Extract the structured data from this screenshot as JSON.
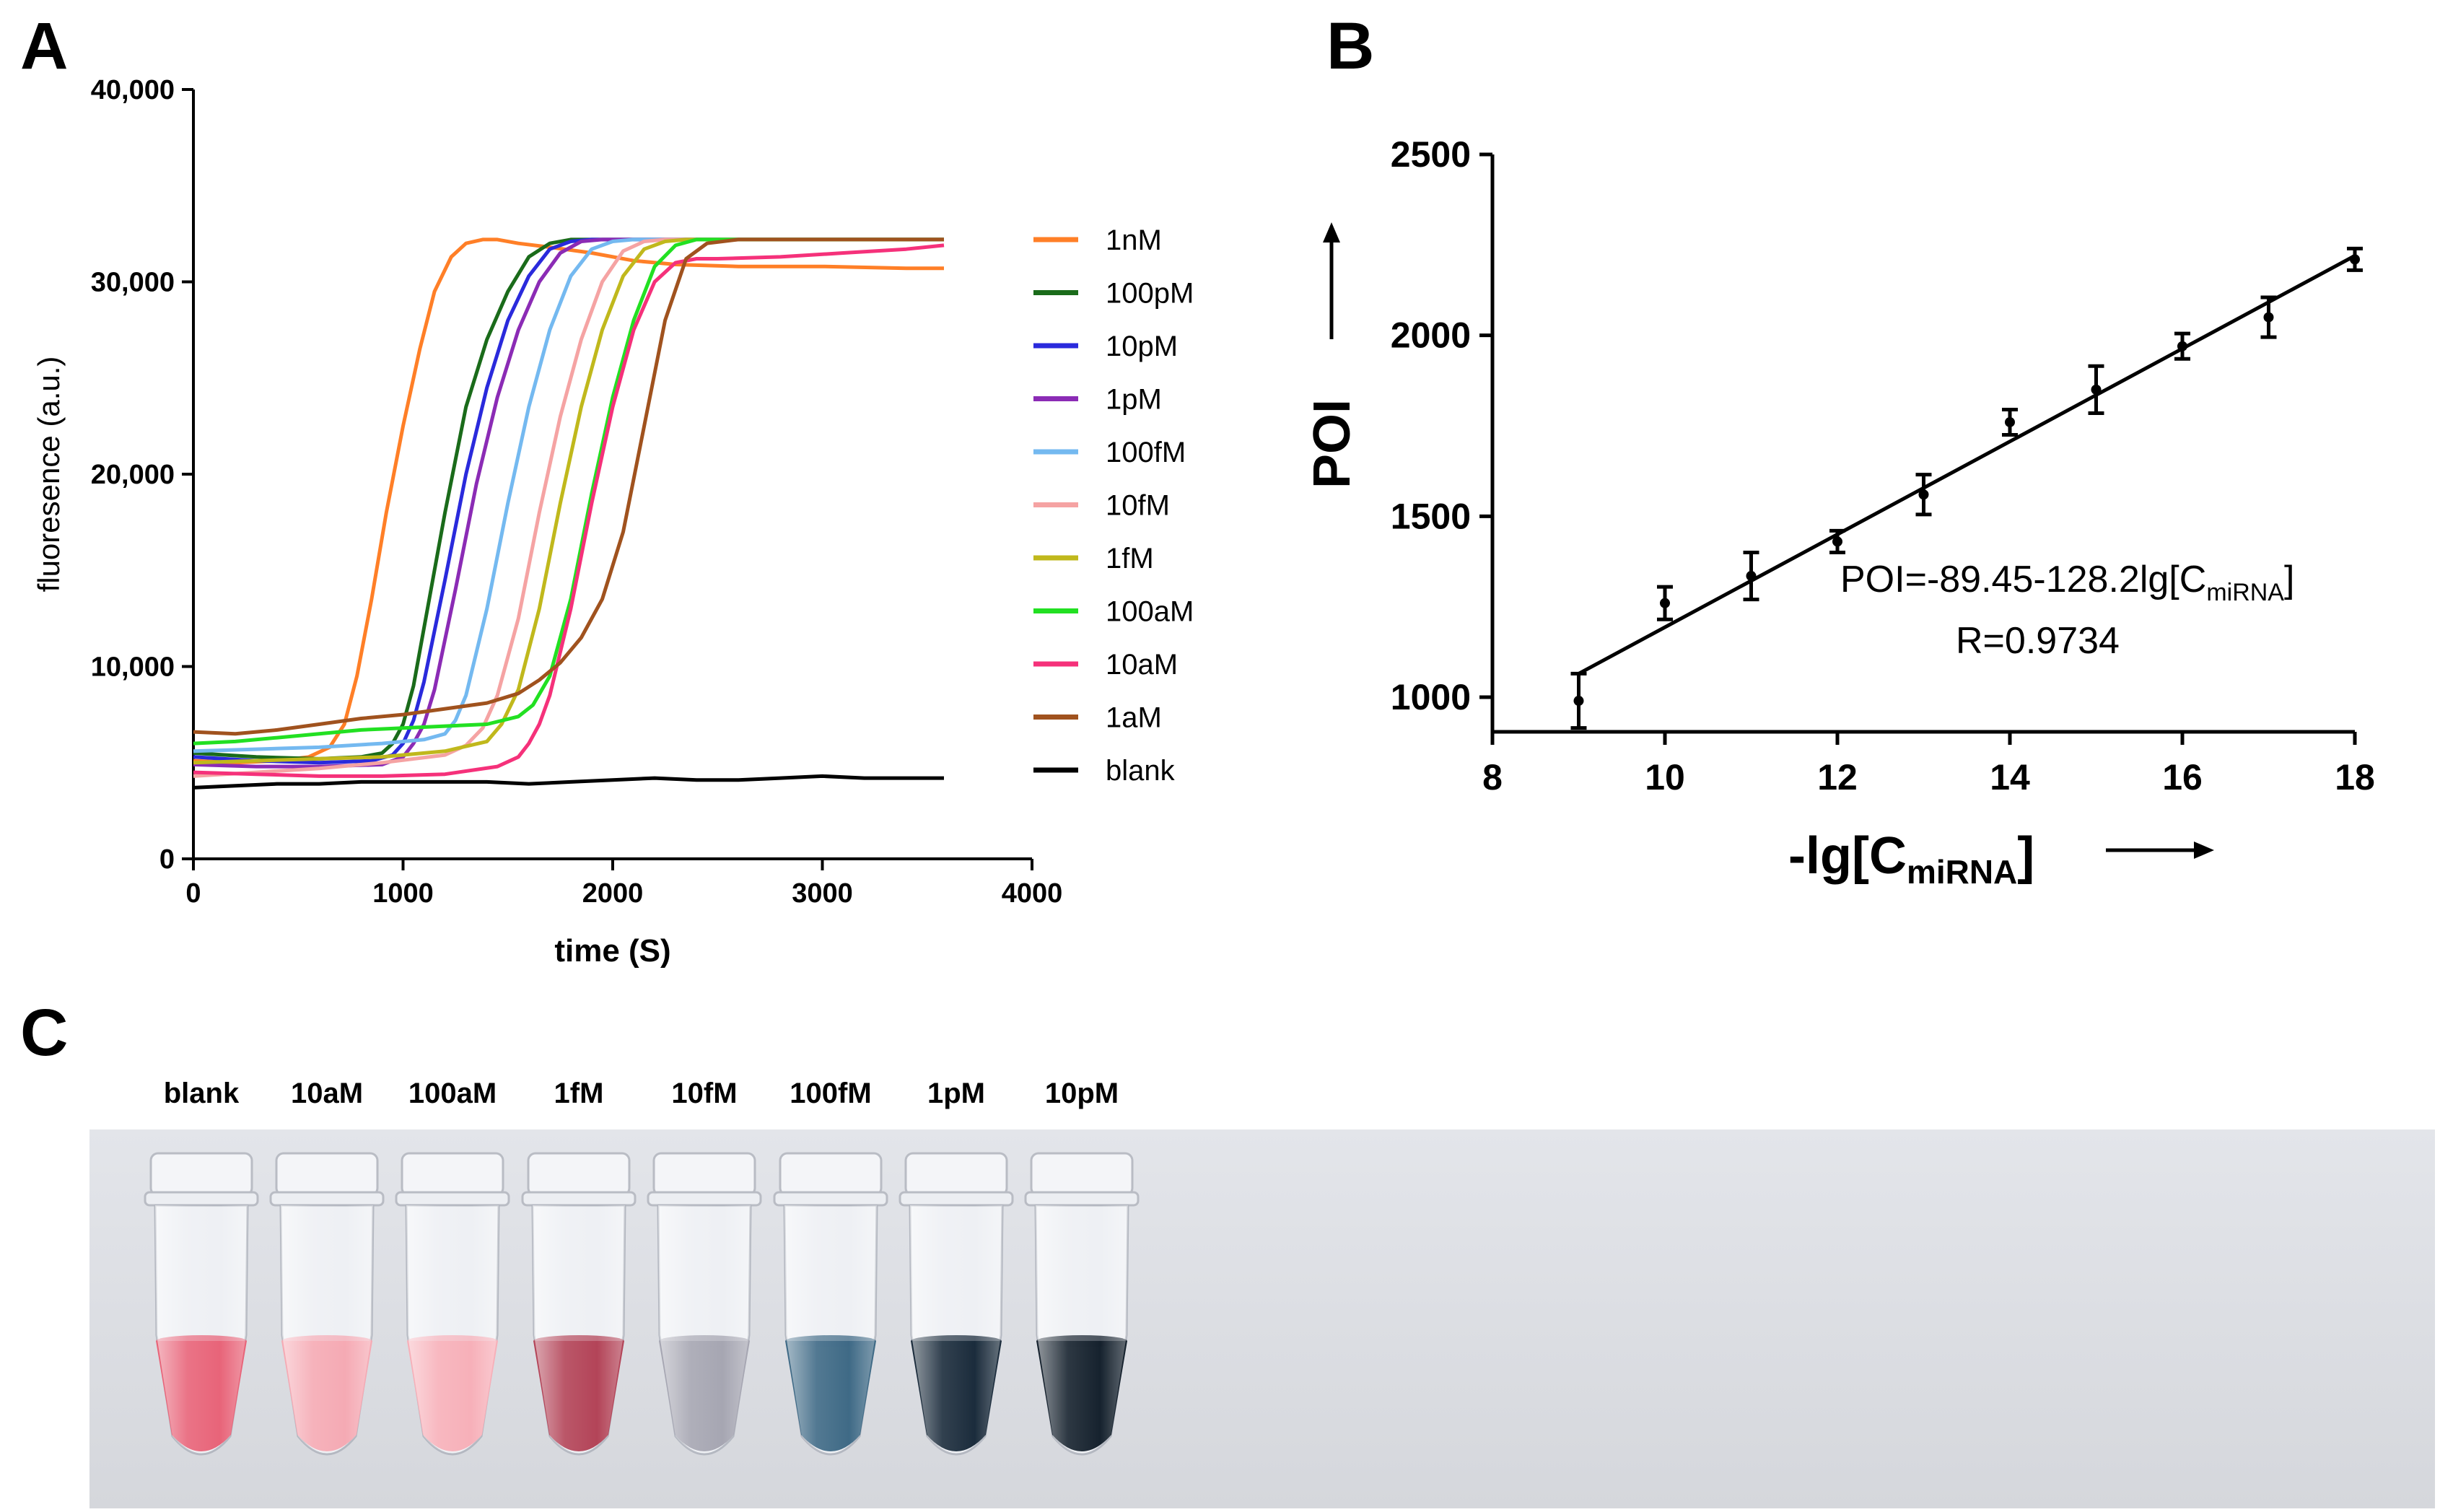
{
  "panels": {
    "a": {
      "letter": "A"
    },
    "b": {
      "letter": "B"
    },
    "c": {
      "letter": "C"
    }
  },
  "chart_data": [
    {
      "panel": "A",
      "type": "line",
      "title": "",
      "xlabel": "time (S)",
      "ylabel": "fluoresence  (a.u.)",
      "xlim": [
        0,
        4000
      ],
      "ylim": [
        0,
        40000
      ],
      "xticks": [
        0,
        1000,
        2000,
        3000,
        4000
      ],
      "xtick_labels": [
        "0",
        "1000",
        "2000",
        "3000",
        "4000"
      ],
      "yticks": [
        0,
        10000,
        20000,
        30000,
        40000
      ],
      "ytick_labels": [
        "0",
        "10,000",
        "20,000",
        "30,000",
        "40,000"
      ],
      "legend_position": "right",
      "series": [
        {
          "name": "1nM",
          "color": "#ff7f27",
          "x": [
            0,
            200,
            400,
            550,
            650,
            720,
            780,
            850,
            920,
            1000,
            1080,
            1150,
            1230,
            1300,
            1380,
            1450,
            1550,
            1700,
            1900,
            2100,
            2300,
            2600,
            3000,
            3400,
            3580
          ],
          "y": [
            5100,
            5000,
            5100,
            5300,
            5800,
            7000,
            9500,
            13500,
            18000,
            22500,
            26500,
            29500,
            31300,
            32000,
            32200,
            32200,
            32000,
            31800,
            31500,
            31100,
            30900,
            30800,
            30800,
            30700,
            30700
          ]
        },
        {
          "name": "100pM",
          "color": "#1a6b1a",
          "x": [
            0,
            300,
            600,
            800,
            900,
            950,
            1000,
            1050,
            1100,
            1200,
            1300,
            1400,
            1500,
            1600,
            1700,
            1800,
            2000,
            2500,
            3000,
            3580
          ],
          "y": [
            5500,
            5300,
            5200,
            5300,
            5500,
            6000,
            7000,
            9000,
            12000,
            18000,
            23500,
            27000,
            29500,
            31300,
            32000,
            32200,
            32200,
            32200,
            32200,
            32200
          ]
        },
        {
          "name": "10pM",
          "color": "#2a2adc",
          "x": [
            0,
            300,
            600,
            850,
            950,
            1000,
            1050,
            1100,
            1200,
            1300,
            1400,
            1500,
            1600,
            1700,
            1800,
            1900,
            2100,
            2500,
            3000,
            3580
          ],
          "y": [
            5300,
            5100,
            5000,
            5100,
            5400,
            6000,
            7200,
            9200,
            14500,
            20000,
            24500,
            28000,
            30300,
            31700,
            32100,
            32200,
            32200,
            32200,
            32200,
            32200
          ]
        },
        {
          "name": "1pM",
          "color": "#8b2bb5",
          "x": [
            0,
            300,
            600,
            900,
            1000,
            1050,
            1100,
            1150,
            1250,
            1350,
            1450,
            1550,
            1650,
            1750,
            1850,
            1950,
            2100,
            2500,
            3000,
            3580
          ],
          "y": [
            4900,
            4800,
            4800,
            4900,
            5300,
            6000,
            7000,
            8800,
            14000,
            19500,
            24000,
            27500,
            30000,
            31500,
            32100,
            32200,
            32200,
            32200,
            32200,
            32200
          ]
        },
        {
          "name": "100fM",
          "color": "#74b9f0",
          "x": [
            0,
            300,
            600,
            900,
            1100,
            1200,
            1250,
            1300,
            1400,
            1500,
            1600,
            1700,
            1800,
            1900,
            2000,
            2100,
            2300,
            2600,
            3000,
            3580
          ],
          "y": [
            5600,
            5700,
            5800,
            6000,
            6200,
            6500,
            7200,
            8500,
            13000,
            18500,
            23500,
            27500,
            30300,
            31700,
            32100,
            32200,
            32200,
            32200,
            32200,
            32200
          ]
        },
        {
          "name": "10fM",
          "color": "#f5a3a3",
          "x": [
            0,
            300,
            600,
            900,
            1200,
            1300,
            1380,
            1450,
            1550,
            1650,
            1750,
            1850,
            1950,
            2050,
            2150,
            2250,
            2400,
            2700,
            3000,
            3580
          ],
          "y": [
            4300,
            4500,
            4700,
            5000,
            5400,
            5900,
            6800,
            8500,
            12500,
            18000,
            23000,
            27000,
            30000,
            31600,
            32100,
            32200,
            32200,
            32200,
            32200,
            32200
          ]
        },
        {
          "name": "1fM",
          "color": "#c0b81c",
          "x": [
            0,
            300,
            600,
            900,
            1200,
            1400,
            1470,
            1550,
            1650,
            1750,
            1850,
            1950,
            2050,
            2150,
            2250,
            2350,
            2500,
            2800,
            3200,
            3580
          ],
          "y": [
            5000,
            5100,
            5200,
            5300,
            5600,
            6100,
            7000,
            8800,
            13000,
            18500,
            23500,
            27500,
            30300,
            31700,
            32100,
            32200,
            32200,
            32200,
            32200,
            32200
          ]
        },
        {
          "name": "100aM",
          "color": "#22e022",
          "x": [
            0,
            200,
            400,
            600,
            800,
            1000,
            1200,
            1400,
            1550,
            1620,
            1700,
            1800,
            1900,
            2000,
            2100,
            2200,
            2300,
            2400,
            2500,
            2800,
            3200,
            3580
          ],
          "y": [
            6000,
            6100,
            6300,
            6500,
            6700,
            6800,
            6900,
            7000,
            7400,
            8000,
            9500,
            13500,
            19000,
            24000,
            28000,
            30800,
            31900,
            32200,
            32200,
            32200,
            32200,
            32200
          ]
        },
        {
          "name": "10aM",
          "color": "#f5317a",
          "x": [
            0,
            300,
            600,
            900,
            1200,
            1450,
            1550,
            1600,
            1650,
            1700,
            1800,
            1900,
            2000,
            2100,
            2200,
            2300,
            2400,
            2500,
            2800,
            3100,
            3400,
            3580
          ],
          "y": [
            4500,
            4400,
            4300,
            4300,
            4400,
            4800,
            5300,
            6000,
            7000,
            8500,
            13000,
            18500,
            23500,
            27500,
            30000,
            31000,
            31200,
            31200,
            31300,
            31500,
            31700,
            31900
          ]
        },
        {
          "name": "1aM",
          "color": "#a0521e",
          "x": [
            0,
            200,
            400,
            600,
            800,
            1000,
            1200,
            1400,
            1550,
            1650,
            1750,
            1850,
            1950,
            2050,
            2150,
            2250,
            2350,
            2450,
            2600,
            3000,
            3400,
            3580
          ],
          "y": [
            6600,
            6500,
            6700,
            7000,
            7300,
            7500,
            7800,
            8100,
            8600,
            9300,
            10200,
            11500,
            13500,
            17000,
            22500,
            28000,
            31200,
            32000,
            32200,
            32200,
            32200,
            32200
          ]
        },
        {
          "name": "blank",
          "color": "#000000",
          "x": [
            0,
            200,
            400,
            600,
            800,
            1000,
            1200,
            1400,
            1600,
            1800,
            2000,
            2200,
            2400,
            2600,
            2800,
            3000,
            3200,
            3400,
            3580
          ],
          "y": [
            3700,
            3800,
            3900,
            3900,
            4000,
            4000,
            4000,
            4000,
            3900,
            4000,
            4100,
            4200,
            4100,
            4100,
            4200,
            4300,
            4200,
            4200,
            4200
          ]
        }
      ]
    },
    {
      "panel": "B",
      "type": "scatter",
      "title": "",
      "xlabel_main": "-lg[C",
      "xlabel_sub": "miRNA",
      "xlabel_close": "]",
      "ylabel": "POI",
      "xlim": [
        8,
        18
      ],
      "ylim": [
        900,
        2500
      ],
      "xticks": [
        8,
        10,
        12,
        14,
        16,
        18
      ],
      "xtick_labels": [
        "8",
        "10",
        "12",
        "14",
        "16",
        "18"
      ],
      "yticks": [
        1000,
        1500,
        2000,
        2500
      ],
      "ytick_labels": [
        "1000",
        "1500",
        "2000",
        "2500"
      ],
      "points": [
        {
          "x": 9,
          "y": 990,
          "err": 75
        },
        {
          "x": 10,
          "y": 1260,
          "err": 45
        },
        {
          "x": 11,
          "y": 1335,
          "err": 65
        },
        {
          "x": 12,
          "y": 1430,
          "err": 30
        },
        {
          "x": 13,
          "y": 1560,
          "err": 55
        },
        {
          "x": 14,
          "y": 1760,
          "err": 35
        },
        {
          "x": 15,
          "y": 1850,
          "err": 65
        },
        {
          "x": 16,
          "y": 1970,
          "err": 35
        },
        {
          "x": 17,
          "y": 2050,
          "err": 55
        },
        {
          "x": 18,
          "y": 2210,
          "err": 30
        }
      ],
      "fit": {
        "x": [
          9,
          18
        ],
        "y": [
          1065,
          2220
        ]
      },
      "equation_main": "POI=-89.45-128.2lg[C",
      "equation_sub": "miRNA",
      "equation_close": "]",
      "r_value": "R=0.9734"
    }
  ],
  "photo": {
    "labels": [
      "blank",
      "10aM",
      "100aM",
      "1fM",
      "10fM",
      "100fM",
      "1pM",
      "10pM"
    ],
    "liquid_colors": [
      "#e86479",
      "#f5aab4",
      "#f7b0b9",
      "#b34458",
      "#a6a6b2",
      "#3f6a86",
      "#1b2c3c",
      "#16222e"
    ]
  }
}
